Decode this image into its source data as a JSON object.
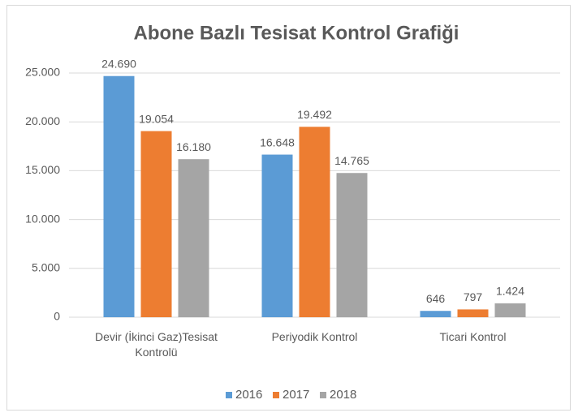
{
  "chart_data": {
    "type": "bar",
    "title": "Abone Bazlı Tesisat Kontrol Grafiği",
    "categories": [
      "Devir (İkinci Gaz)Tesisat Kontrolü",
      "Periyodik Kontrol",
      "Ticari Kontrol"
    ],
    "series": [
      {
        "name": "2016",
        "color": "#5b9bd5",
        "values": [
          24690,
          16648,
          646
        ],
        "value_labels": [
          "24.690",
          "16.648",
          "646"
        ]
      },
      {
        "name": "2017",
        "color": "#ed7d31",
        "values": [
          19054,
          19492,
          797
        ],
        "value_labels": [
          "19.054",
          "19.492",
          "797"
        ]
      },
      {
        "name": "2018",
        "color": "#a5a5a5",
        "values": [
          16180,
          14765,
          1424
        ],
        "value_labels": [
          "16.180",
          "14.765",
          "1.424"
        ]
      }
    ],
    "ylim": [
      0,
      25000
    ],
    "yticks": [
      0,
      {
        "value": 5000,
        "label": "5.000"
      },
      {
        "value": 10000,
        "label": "10.000"
      },
      {
        "value": 15000,
        "label": "15.000"
      },
      {
        "value": 20000,
        "label": "20.000"
      },
      {
        "value": 25000,
        "label": "25.000"
      }
    ],
    "grid": true,
    "legend": "bottom"
  }
}
